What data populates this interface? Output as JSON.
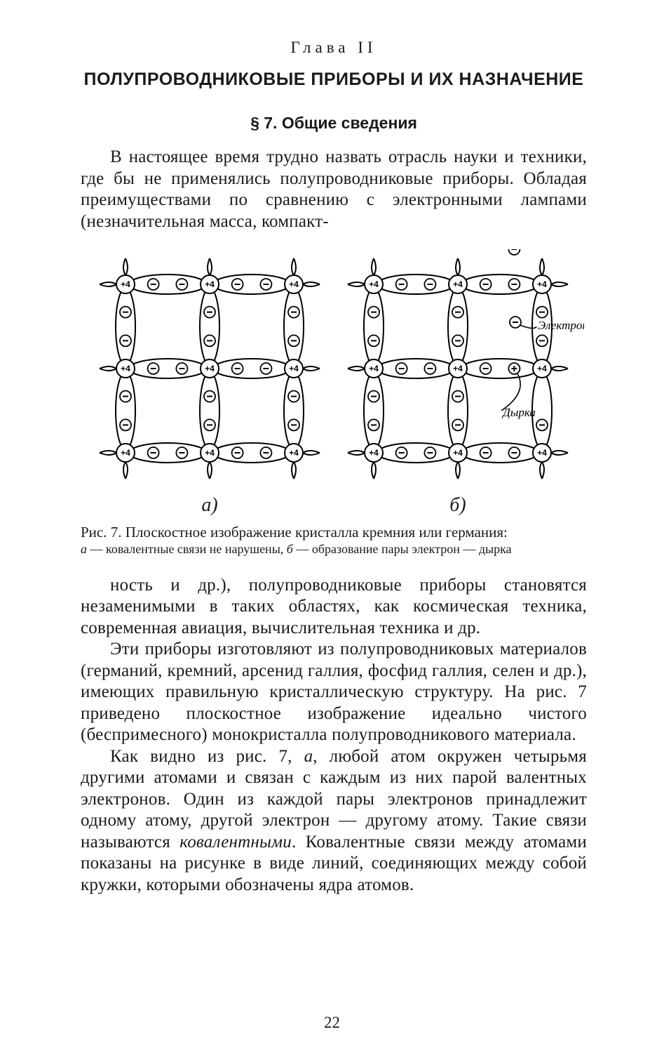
{
  "chapter": "Глава II",
  "title": "ПОЛУПРОВОДНИКОВЫЕ ПРИБОРЫ И ИХ НАЗНАЧЕНИЕ",
  "section": "§ 7. Общие сведения",
  "para1": "В настоящее время трудно назвать отрасль науки и техники, где бы не применялись полупроводниковые приборы. Обладая преимуществами по сравнению с электронными лампами (незначительная масса, компакт-",
  "figure": {
    "label_a": "а)",
    "label_b": "б)",
    "annot_electron": "Электрон",
    "annot_hole": "Дырка",
    "atom_label": "+4",
    "caption_main": "Рис. 7. Плоскостное изображение кристалла кремния или германия:",
    "caption_sub_a": "а",
    "caption_sub_a_txt": " — ковалентные связи не нарушены, ",
    "caption_sub_b": "б",
    "caption_sub_b_txt": " — образование пары электрон — дырка"
  },
  "para2": "ность и др.), полупроводниковые приборы становятся незаменимыми в таких областях, как космическая техника, современная авиация, вычислительная техника и др.",
  "para3": "Эти приборы изготовляют из полупроводниковых материалов (германий, кремний, арсенид галлия, фосфид галлия, селен и др.), имеющих правильную кристаллическую структуру. На рис. 7 приведено плоскостное изображение идеально чистого (беспримесного) монокристалла полупроводникового материала.",
  "para4_a": "Как видно из рис. 7, ",
  "para4_a_it": "а",
  "para4_b": ", любой атом окружен четырьмя другими атомами и связан с каждым из них парой валентных электронов. Один из каждой пары электронов принадлежит одному атому, другой электрон — другому атому. Такие связи называются ",
  "para4_term": "ковалентными",
  "para4_c": ". Ковалентные связи между атомами показаны на рисунке в виде линий, соединяющих между собой кружки, которыми обозначены ядра атомов.",
  "page_number": "22",
  "style": {
    "bg": "#ffffff",
    "text": "#1a1a1a",
    "stroke": "#000000",
    "stroke_w": 2,
    "atom_r": 13,
    "elec_r": 8
  },
  "lattice": {
    "cols": [
      60,
      180,
      300
    ],
    "rows": [
      50,
      170,
      290
    ],
    "tail": 24
  }
}
